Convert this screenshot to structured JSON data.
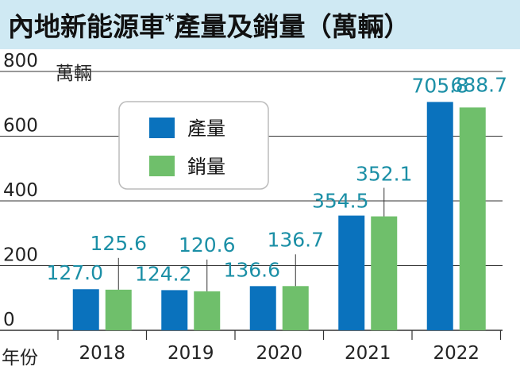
{
  "chart_data": {
    "type": "bar",
    "title": "內地新能源車",
    "title_mark": "*",
    "title_suffix": "產量及銷量（萬輛）",
    "unit_label": "萬輛",
    "x_axis_label": "年份",
    "categories": [
      "2018",
      "2019",
      "2020",
      "2021",
      "2022"
    ],
    "series": [
      {
        "name": "產量",
        "color": "#0a72bd",
        "values": [
          127.0,
          124.2,
          136.6,
          354.5,
          705.8
        ],
        "labels": [
          "127.0",
          "124.2",
          "136.6",
          "354.5",
          "705.8"
        ]
      },
      {
        "name": "銷量",
        "color": "#6fbf6b",
        "values": [
          125.6,
          120.6,
          136.7,
          352.1,
          688.7
        ],
        "labels": [
          "125.6",
          "120.6",
          "136.7",
          "352.1",
          "688.7"
        ]
      }
    ],
    "yticks": [
      "0",
      "200",
      "400",
      "600",
      "800"
    ],
    "ylim": [
      0,
      800
    ],
    "grid": true,
    "legend_position": "top-left",
    "label_color": "#1b8fa6",
    "title_bg": "#cfe9f3"
  }
}
